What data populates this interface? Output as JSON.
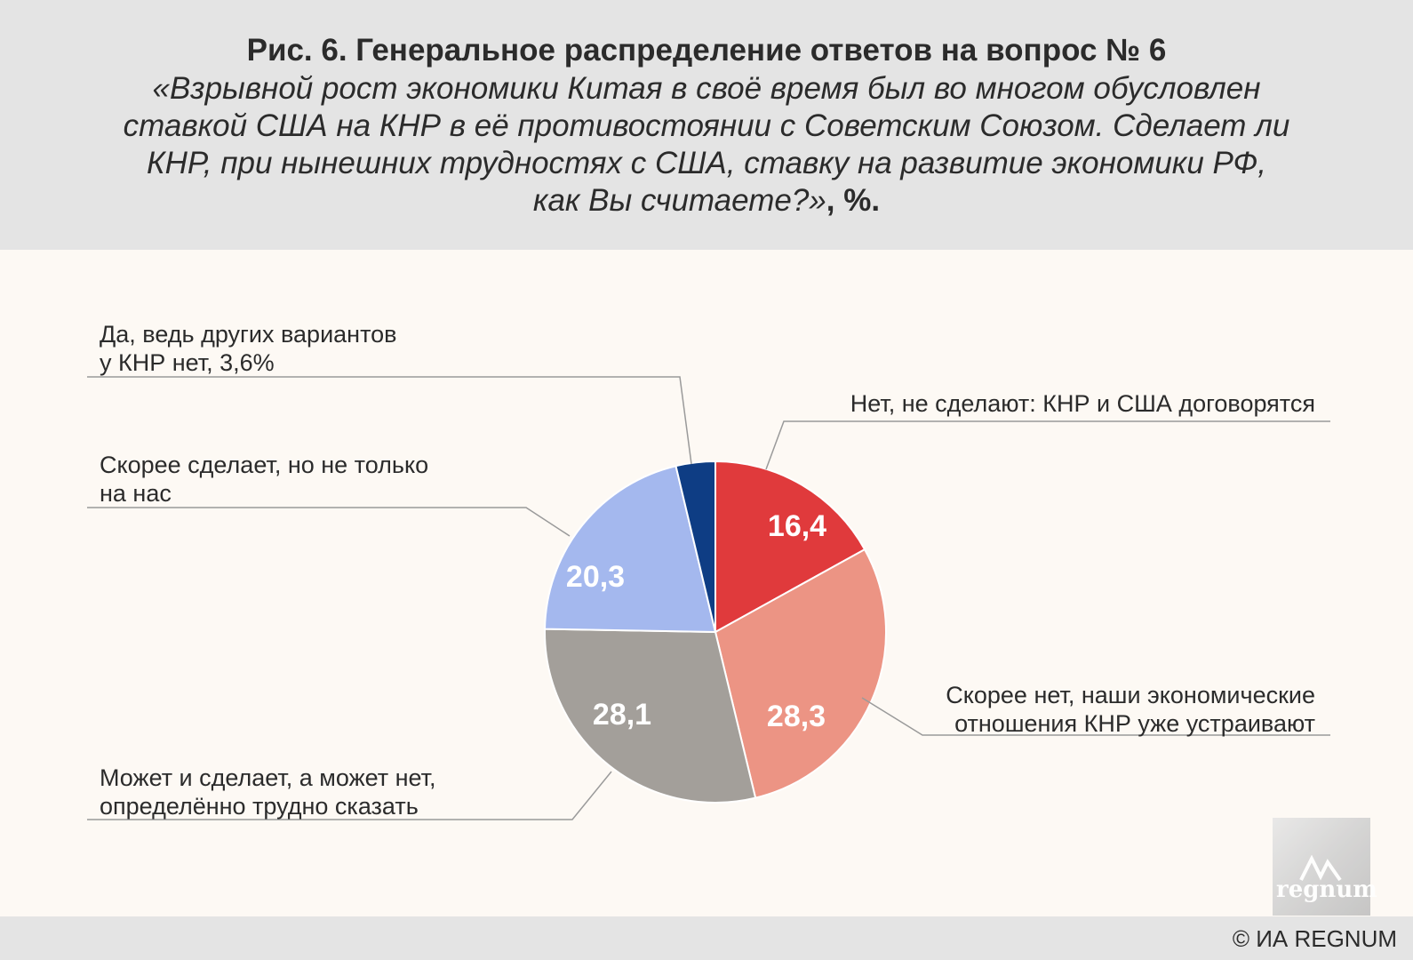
{
  "header": {
    "title": "Рис. 6. Генеральное распределение ответов на вопрос № 6",
    "subtitle_lines": [
      "«Взрывной рост экономики Китая в своё время был во многом обусловлен",
      "ставкой США на КНР в её противостоянии с Советским Союзом. Сделает ли",
      "КНР, при нынешних трудностях с США, ставку на развитие экономики РФ,"
    ],
    "subtitle_last": "как Вы считаете?»",
    "subtitle_unit": ", %."
  },
  "chart_data": {
    "type": "pie",
    "slices": [
      {
        "label_lines": [
          "Нет, не сделают: КНР и США договорятся"
        ],
        "value": 16.4,
        "value_label": "16,4",
        "color": "#e03a3c"
      },
      {
        "label_lines": [
          "Скорее нет, наши экономические",
          "отношения КНР уже устраивают"
        ],
        "value": 28.3,
        "value_label": "28,3",
        "color": "#ec9484"
      },
      {
        "label_lines": [
          "Может и сделает, а может нет,",
          "определённо трудно сказать"
        ],
        "value": 28.1,
        "value_label": "28,1",
        "color": "#a39f9a"
      },
      {
        "label_lines": [
          "Скорее сделает, но не только",
          "на нас"
        ],
        "value": 20.3,
        "value_label": "20,3",
        "color": "#a4b8ee"
      },
      {
        "label_lines": [
          "Да, ведь других вариантов",
          "у КНР нет, 3,6%"
        ],
        "value": 3.6,
        "value_label": "",
        "color": "#0e3d84"
      }
    ]
  },
  "footer": {
    "copyright": "© ИА REGNUM",
    "logo_text": "regnum"
  }
}
